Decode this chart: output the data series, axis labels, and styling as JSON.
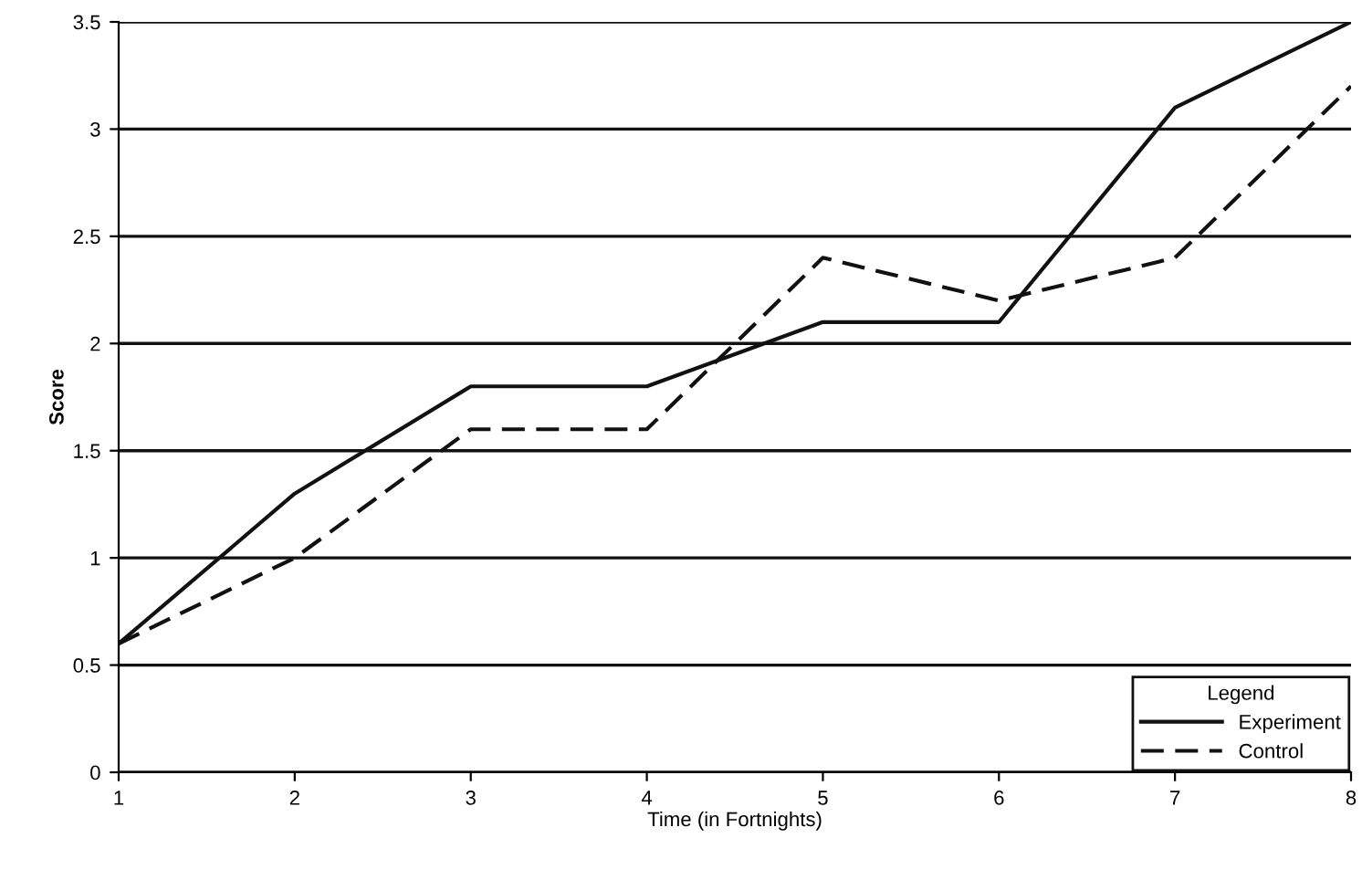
{
  "chart_data": {
    "type": "line",
    "xlabel": "Time (in Fortnights)",
    "ylabel": "Score",
    "legend_title": "Legend",
    "x": [
      1,
      2,
      3,
      4,
      5,
      6,
      7,
      8
    ],
    "series": [
      {
        "name": "Experiment",
        "color": "#111111",
        "line_style": "solid",
        "values": [
          0.6,
          1.3,
          1.8,
          1.8,
          2.1,
          2.1,
          3.1,
          3.5
        ]
      },
      {
        "name": "Control",
        "color": "#111111",
        "line_style": "dashed",
        "values": [
          0.6,
          1.0,
          1.6,
          1.6,
          2.4,
          2.2,
          2.4,
          3.2
        ]
      }
    ],
    "xlim": [
      1,
      8
    ],
    "xticks": [
      1,
      2,
      3,
      4,
      5,
      6,
      7,
      8
    ],
    "ylim": [
      0,
      3.5
    ],
    "yticks": [
      0,
      0.5,
      1,
      1.5,
      2,
      2.5,
      3,
      3.5
    ],
    "grid": "y",
    "legend": "bottom right",
    "marker": "none"
  }
}
